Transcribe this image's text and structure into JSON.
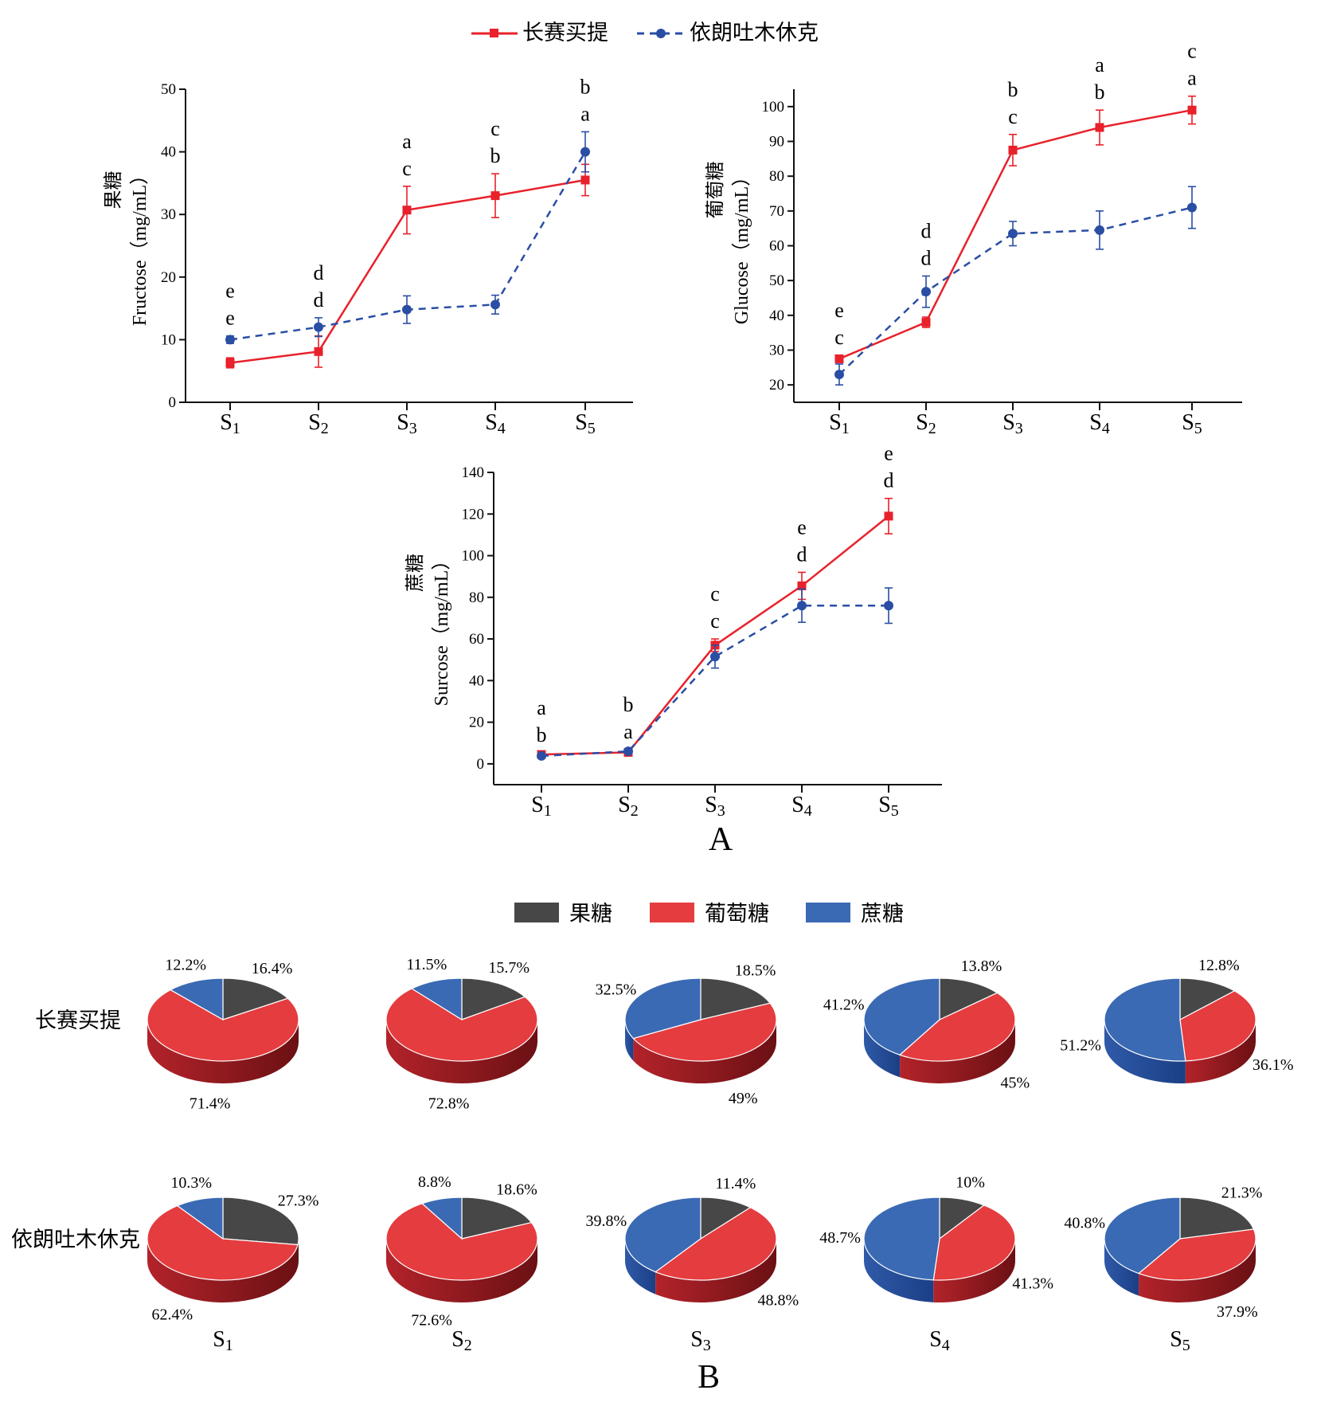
{
  "colors": {
    "red": "#e8212b",
    "blue": "#2a4ea4",
    "dark": "#333333",
    "pie_red": "#e53c3f",
    "pie_blue": "#3b6ab4",
    "pie_dark": "#474747"
  },
  "panel_labels": {
    "a": "A",
    "b": "B"
  },
  "stage_labels": [
    "S1",
    "S2",
    "S3",
    "S4",
    "S5"
  ],
  "chart_data": [
    {
      "type": "line",
      "categories": [
        "S1",
        "S2",
        "S3",
        "S4",
        "S5"
      ],
      "ylabel_cn": "果糖",
      "ylabel": "Fructose（mg/mL）",
      "ylim": [
        0,
        50
      ],
      "yticks": [
        0,
        10,
        20,
        30,
        40,
        50
      ],
      "series": [
        {
          "name": "长赛买提",
          "style": "solid-square",
          "values": [
            6.3,
            8.1,
            30.7,
            33.0,
            35.5
          ],
          "err": [
            0.8,
            2.5,
            3.8,
            3.5,
            2.5
          ],
          "letters": [
            "e",
            "d",
            "a",
            "c",
            "b"
          ]
        },
        {
          "name": "依朗吐木休克",
          "style": "dashed-circle",
          "values": [
            10.0,
            12.0,
            14.8,
            15.6,
            40.0
          ],
          "err": [
            0.6,
            1.5,
            2.2,
            1.5,
            3.2
          ],
          "letters": [
            "e",
            "d",
            "c",
            "b",
            "a"
          ]
        }
      ]
    },
    {
      "type": "line",
      "categories": [
        "S1",
        "S2",
        "S3",
        "S4",
        "S5"
      ],
      "ylabel_cn": "葡萄糖",
      "ylabel": "Glucose（mg/mL）",
      "ylim": [
        15,
        105
      ],
      "yticks": [
        20,
        30,
        40,
        50,
        60,
        70,
        80,
        90,
        100
      ],
      "series": [
        {
          "name": "长赛买提",
          "style": "solid-square",
          "values": [
            27.5,
            38.0,
            87.5,
            94.0,
            99.0
          ],
          "err": [
            1.0,
            1.5,
            4.5,
            5.0,
            4.0
          ],
          "letters": [
            "e",
            "d",
            "b",
            "a",
            "c"
          ]
        },
        {
          "name": "依朗吐木休克",
          "style": "dashed-circle",
          "values": [
            23.0,
            46.8,
            63.5,
            64.5,
            71.0
          ],
          "err": [
            3.0,
            4.5,
            3.5,
            5.5,
            6.0
          ],
          "letters": [
            "c",
            "d",
            "c",
            "b",
            "a"
          ]
        }
      ]
    },
    {
      "type": "line",
      "categories": [
        "S1",
        "S2",
        "S3",
        "S4",
        "S5"
      ],
      "ylabel_cn": "蔗糖",
      "ylabel": "Surcose（mg/mL）",
      "ylim": [
        -10,
        140
      ],
      "yticks": [
        0,
        20,
        40,
        60,
        80,
        100,
        120,
        140
      ],
      "series": [
        {
          "name": "长赛买提",
          "style": "solid-square",
          "values": [
            4.5,
            5.5,
            57.0,
            85.5,
            119.0
          ],
          "err": [
            0.8,
            1.0,
            3.0,
            6.5,
            8.5
          ],
          "letters": [
            "a",
            "b",
            "c",
            "e",
            "e"
          ]
        },
        {
          "name": "依朗吐木休克",
          "style": "dashed-circle",
          "values": [
            3.8,
            6.0,
            51.5,
            76.0,
            76.0
          ],
          "err": [
            0.6,
            0.8,
            5.5,
            8.0,
            8.5
          ],
          "letters": [
            "b",
            "a",
            "c",
            "d",
            "d"
          ]
        }
      ]
    },
    {
      "type": "pie",
      "legend": [
        "果糖",
        "葡萄糖",
        "蔗糖"
      ],
      "rows": [
        {
          "name": "长赛买提",
          "pies": [
            {
              "stage": "S1",
              "values": [
                16.4,
                71.4,
                12.2
              ],
              "labels": [
                "16.4%",
                "71.4%",
                "12.2%"
              ]
            },
            {
              "stage": "S2",
              "values": [
                15.7,
                72.8,
                11.5
              ],
              "labels": [
                "15.7%",
                "72.8%",
                "11.5%"
              ]
            },
            {
              "stage": "S3",
              "values": [
                18.5,
                49.0,
                32.5
              ],
              "labels": [
                "18.5%",
                "49%",
                "32.5%"
              ]
            },
            {
              "stage": "S4",
              "values": [
                13.8,
                45.0,
                41.2
              ],
              "labels": [
                "13.8%",
                "45%",
                "41.2%"
              ]
            },
            {
              "stage": "S5",
              "values": [
                12.8,
                36.1,
                51.2
              ],
              "labels": [
                "12.8%",
                "36.1%",
                "51.2%"
              ]
            }
          ]
        },
        {
          "name": "依朗吐木休克",
          "pies": [
            {
              "stage": "S1",
              "values": [
                27.3,
                62.4,
                10.3
              ],
              "labels": [
                "27.3%",
                "62.4%",
                "10.3%"
              ]
            },
            {
              "stage": "S2",
              "values": [
                18.6,
                72.6,
                8.8
              ],
              "labels": [
                "18.6%",
                "72.6%",
                "8.8%"
              ]
            },
            {
              "stage": "S3",
              "values": [
                11.4,
                48.8,
                39.8
              ],
              "labels": [
                "11.4%",
                "48.8%",
                "39.8%"
              ]
            },
            {
              "stage": "S4",
              "values": [
                10.0,
                41.3,
                48.7
              ],
              "labels": [
                "10%",
                "41.3%",
                "48.7%"
              ]
            },
            {
              "stage": "S5",
              "values": [
                21.3,
                37.9,
                40.8
              ],
              "labels": [
                "21.3%",
                "37.9%",
                "40.8%"
              ]
            }
          ]
        }
      ]
    }
  ]
}
